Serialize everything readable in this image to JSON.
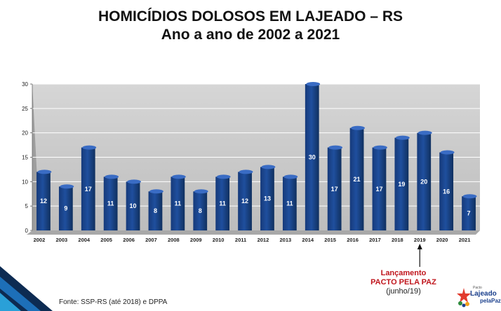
{
  "chart_data": {
    "type": "bar",
    "title": "HOMICÍDIOS DOLOSOS EM LAJEADO – RS",
    "subtitle": "Ano a ano de 2002 a 2021",
    "categories": [
      "2002",
      "2003",
      "2004",
      "2005",
      "2006",
      "2007",
      "2008",
      "2009",
      "2010",
      "2011",
      "2012",
      "2013",
      "2014",
      "2015",
      "2016",
      "2017",
      "2018",
      "2019",
      "2020",
      "2021"
    ],
    "values": [
      12,
      9,
      17,
      11,
      10,
      8,
      11,
      8,
      11,
      12,
      13,
      11,
      30,
      17,
      21,
      17,
      19,
      20,
      16,
      7
    ],
    "ylim": [
      0,
      30
    ],
    "yticks": [
      0,
      5,
      10,
      15,
      20,
      25,
      30
    ],
    "grid": true,
    "bar_color": "#1f4f9e",
    "annotation": {
      "category": "2019",
      "line1": "Lançamento",
      "line2": "PACTO PELA PAZ",
      "line3": "(junho/19)",
      "color": "#c0161d"
    }
  },
  "source": "Fonte: SSP-RS (até 2018) e DPPA",
  "logo": {
    "small": "Pacto",
    "main": "Lajeado",
    "sub": "pelaPaz",
    "icon": "star-people-icon"
  }
}
